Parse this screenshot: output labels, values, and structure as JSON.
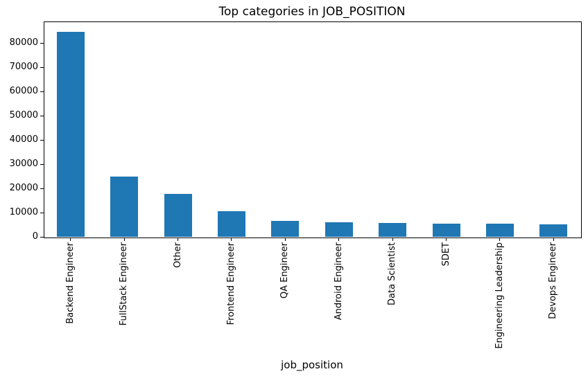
{
  "chart_data": {
    "type": "bar",
    "title": "Top categories in JOB_POSITION",
    "xlabel": "job_position",
    "ylabel": "",
    "categories": [
      "Backend Engineer",
      "FullStack Engineer",
      "Other",
      "Frontend Engineer",
      "QA Engineer",
      "Android Engineer",
      "Data Scientist",
      "SDET",
      "Engineering Leadership",
      "Devops Engineer"
    ],
    "values": [
      84500,
      24800,
      17800,
      10700,
      6700,
      5900,
      5600,
      5400,
      5400,
      5100
    ],
    "ylim": [
      0,
      88900
    ],
    "yticks": [
      0,
      10000,
      20000,
      30000,
      40000,
      50000,
      60000,
      70000,
      80000
    ],
    "bar_color": "#1f77b4",
    "grid": false,
    "legend": false,
    "x_tick_rotation": 90
  }
}
